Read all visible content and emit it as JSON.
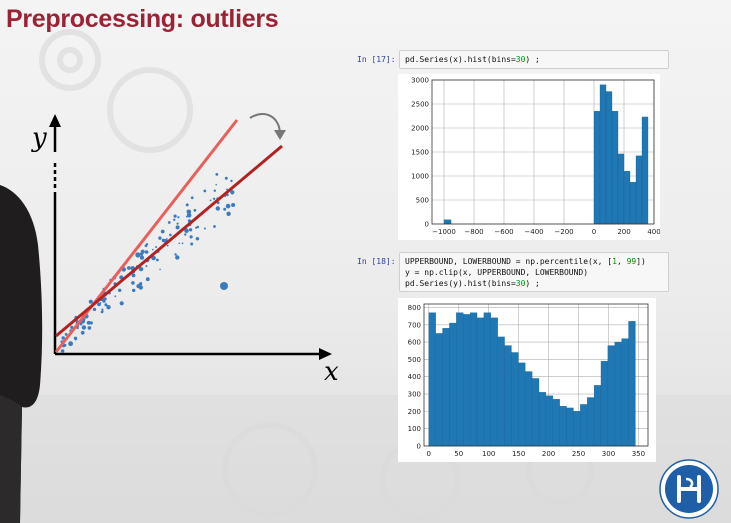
{
  "slide": {
    "title": "Preprocessing: outliers",
    "title_color": "#9b2335"
  },
  "diagram": {
    "y_label": "y",
    "x_label": "x",
    "line_colors": {
      "steep": "#e8605c",
      "fit": "#b22222"
    },
    "point_color": "#3a7bbf"
  },
  "cells": [
    {
      "prompt": "In [17]:",
      "code_parts": [
        "pd.Series(x).hist(bins=",
        "30",
        ") ;"
      ]
    },
    {
      "prompt": "In [18]:",
      "line1_parts": [
        "UPPERBOUND, LOWERBOUND = np.percentile(x, [",
        "1",
        ", ",
        "99",
        "])"
      ],
      "line2": "y = np.clip(x, UPPERBOUND, LOWERBOUND)",
      "line3_parts": [
        "pd.Series(y).hist(bins=",
        "30",
        ") ;"
      ]
    }
  ],
  "chart_data": [
    {
      "type": "bar",
      "x_ticks": [
        "−1000",
        "−800",
        "−600",
        "−400",
        "−200",
        "0",
        "200",
        "400"
      ],
      "y_ticks": [
        "0",
        "500",
        "1000",
        "1500",
        "2000",
        "2500",
        "3000"
      ],
      "xlim": [
        -1080,
        400
      ],
      "ylim": [
        0,
        3000
      ],
      "bins": [
        {
          "x0": -1000,
          "x1": -953,
          "value": 90
        },
        {
          "x0": 0,
          "x1": 40,
          "value": 2350
        },
        {
          "x0": 40,
          "x1": 80,
          "value": 2900
        },
        {
          "x0": 80,
          "x1": 120,
          "value": 2760
        },
        {
          "x0": 120,
          "x1": 160,
          "value": 2350
        },
        {
          "x0": 160,
          "x1": 200,
          "value": 1460
        },
        {
          "x0": 200,
          "x1": 240,
          "value": 1100
        },
        {
          "x0": 240,
          "x1": 280,
          "value": 870
        },
        {
          "x0": 280,
          "x1": 320,
          "value": 1420
        },
        {
          "x0": 320,
          "x1": 360,
          "value": 2230
        }
      ],
      "grid": true,
      "bar_color": "#1f77b4"
    },
    {
      "type": "bar",
      "x_ticks": [
        "0",
        "50",
        "100",
        "150",
        "200",
        "250",
        "300",
        "350"
      ],
      "y_ticks": [
        "0",
        "100",
        "200",
        "300",
        "400",
        "500",
        "600",
        "700",
        "800"
      ],
      "xlim": [
        -8,
        366
      ],
      "ylim": [
        0,
        820
      ],
      "bin_start": 0,
      "bin_width": 11.5,
      "values": [
        770,
        650,
        680,
        710,
        770,
        760,
        770,
        740,
        770,
        740,
        630,
        580,
        540,
        480,
        430,
        390,
        310,
        290,
        270,
        230,
        220,
        200,
        240,
        280,
        350,
        490,
        580,
        600,
        620,
        720
      ],
      "grid": true,
      "bar_color": "#1f77b4"
    }
  ]
}
